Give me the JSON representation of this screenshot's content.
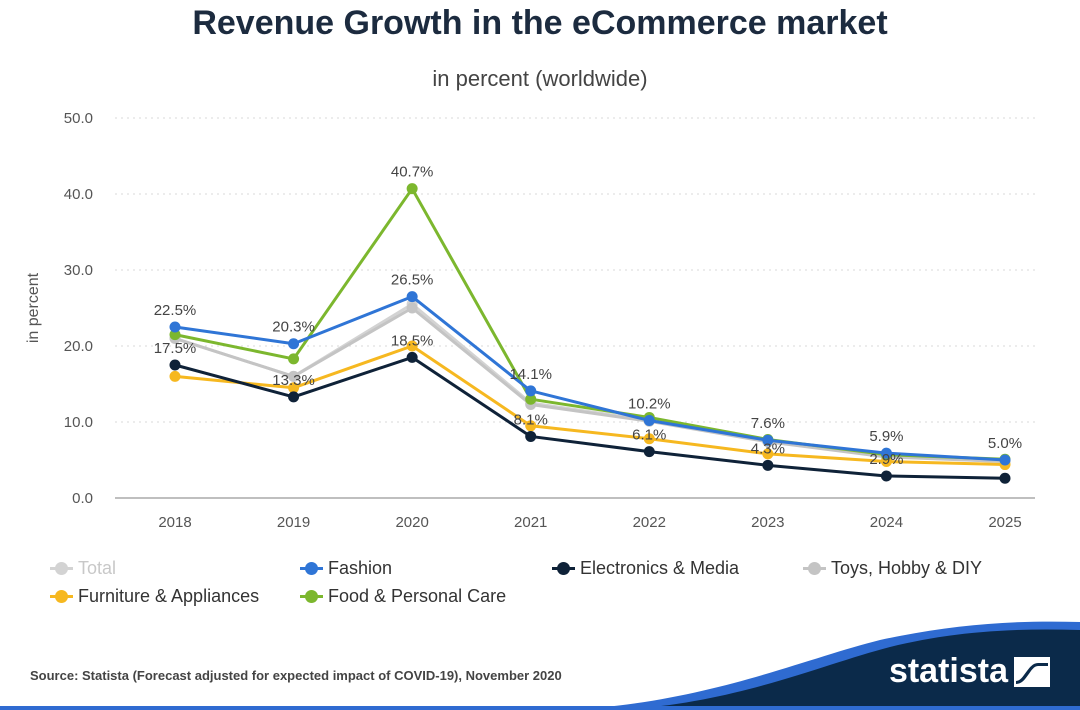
{
  "header": {
    "title": "Revenue Growth in the eCommerce market",
    "subtitle": "in percent (worldwide)"
  },
  "footer": {
    "source": "Source: Statista (Forecast adjusted for expected impact of COVID-19), November 2020",
    "brand": "statista",
    "colors": {
      "wave": "#0b2a4a",
      "accent": "#2f6bd1"
    }
  },
  "chart_data": {
    "type": "line",
    "title": "Revenue Growth in the eCommerce market",
    "subtitle": "in percent (worldwide)",
    "ylabel": "in percent",
    "xlabel": "",
    "x": [
      "2018",
      "2019",
      "2020",
      "2021",
      "2022",
      "2023",
      "2024",
      "2025"
    ],
    "ylim": [
      0,
      50
    ],
    "yticks": [
      "0.0",
      "10.0",
      "20.0",
      "30.0",
      "40.0",
      "50.0"
    ],
    "grid": true,
    "legend_position": "bottom",
    "series": [
      {
        "name": "Total",
        "color": "#d3d3d3",
        "muted": true,
        "values": [
          21.0,
          16.0,
          25.5,
          12.5,
          10.2,
          7.5,
          5.5,
          4.8
        ]
      },
      {
        "name": "Fashion",
        "color": "#2f75d6",
        "values": [
          22.5,
          20.3,
          26.5,
          14.1,
          10.2,
          7.6,
          5.9,
          5.0
        ]
      },
      {
        "name": "Electronics & Media",
        "color": "#0f2238",
        "values": [
          17.5,
          13.3,
          18.5,
          8.1,
          6.1,
          4.3,
          2.9,
          2.6
        ]
      },
      {
        "name": "Toys, Hobby & DIY",
        "color": "#c4c4c4",
        "values": [
          21.0,
          16.0,
          25.0,
          12.3,
          10.1,
          7.4,
          5.4,
          4.8
        ]
      },
      {
        "name": "Furniture & Appliances",
        "color": "#f6b820",
        "values": [
          16.0,
          14.5,
          20.0,
          9.5,
          7.8,
          5.8,
          4.8,
          4.4
        ]
      },
      {
        "name": "Food & Personal Care",
        "color": "#7cb72e",
        "values": [
          21.5,
          18.3,
          40.7,
          13.0,
          10.6,
          7.7,
          5.7,
          5.1
        ]
      }
    ],
    "annotations": [
      {
        "series": "Fashion",
        "x": "2018",
        "text": "22.5%"
      },
      {
        "series": "Electronics & Media",
        "x": "2018",
        "text": "17.5%"
      },
      {
        "series": "Fashion",
        "x": "2019",
        "text": "20.3%"
      },
      {
        "series": "Electronics & Media",
        "x": "2019",
        "text": "13.3%"
      },
      {
        "series": "Food & Personal Care",
        "x": "2020",
        "text": "40.7%"
      },
      {
        "series": "Fashion",
        "x": "2020",
        "text": "26.5%"
      },
      {
        "series": "Electronics & Media",
        "x": "2020",
        "text": "18.5%"
      },
      {
        "series": "Fashion",
        "x": "2021",
        "text": "14.1%"
      },
      {
        "series": "Electronics & Media",
        "x": "2021",
        "text": "8.1%"
      },
      {
        "series": "Fashion",
        "x": "2022",
        "text": "10.2%"
      },
      {
        "series": "Electronics & Media",
        "x": "2022",
        "text": "6.1%"
      },
      {
        "series": "Fashion",
        "x": "2023",
        "text": "7.6%"
      },
      {
        "series": "Electronics & Media",
        "x": "2023",
        "text": "4.3%"
      },
      {
        "series": "Fashion",
        "x": "2024",
        "text": "5.9%"
      },
      {
        "series": "Electronics & Media",
        "x": "2024",
        "text": "2.9%"
      },
      {
        "series": "Fashion",
        "x": "2025",
        "text": "5.0%"
      }
    ]
  }
}
